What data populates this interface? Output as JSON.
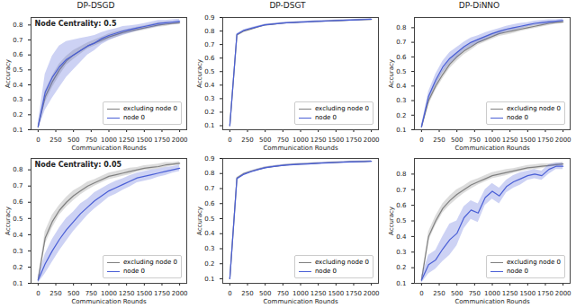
{
  "chart_data": [
    {
      "type": "line",
      "title": "DP-DSGD",
      "annotation": "Node Centrality: 0.5",
      "x_label": "Communication Rounds",
      "y_label": "Accuracy",
      "legend": "lower right",
      "grid": false,
      "x": [
        0,
        100,
        200,
        300,
        400,
        500,
        600,
        700,
        800,
        900,
        1000,
        1100,
        1200,
        1300,
        1400,
        1500,
        1600,
        1700,
        1800,
        1900,
        2000
      ],
      "xlim": [
        -100,
        2100
      ],
      "xticks": [
        0,
        250,
        500,
        750,
        1000,
        1250,
        1500,
        1750,
        2000
      ],
      "ylim": [
        0.1,
        0.85
      ],
      "yticks": [
        0.1,
        0.2,
        0.3,
        0.4,
        0.5,
        0.6,
        0.7,
        0.8
      ],
      "series": [
        {
          "name": "excluding node 0",
          "color": "#808080",
          "values": [
            0.12,
            0.32,
            0.42,
            0.5,
            0.56,
            0.6,
            0.63,
            0.66,
            0.68,
            0.7,
            0.72,
            0.735,
            0.75,
            0.76,
            0.77,
            0.78,
            0.79,
            0.8,
            0.805,
            0.81,
            0.815
          ],
          "errors": [
            0.01,
            0.04,
            0.04,
            0.04,
            0.03,
            0.03,
            0.025,
            0.02,
            0.02,
            0.02,
            0.02,
            0.02,
            0.015,
            0.015,
            0.015,
            0.015,
            0.015,
            0.015,
            0.015,
            0.01,
            0.01
          ]
        },
        {
          "name": "node 0",
          "color": "#4a5fd6",
          "values": [
            0.12,
            0.35,
            0.45,
            0.52,
            0.57,
            0.6,
            0.63,
            0.66,
            0.68,
            0.71,
            0.73,
            0.745,
            0.76,
            0.77,
            0.78,
            0.79,
            0.8,
            0.81,
            0.815,
            0.82,
            0.825
          ],
          "errors": [
            0.02,
            0.12,
            0.14,
            0.14,
            0.12,
            0.1,
            0.08,
            0.06,
            0.05,
            0.04,
            0.035,
            0.03,
            0.03,
            0.025,
            0.02,
            0.02,
            0.02,
            0.02,
            0.015,
            0.015,
            0.015
          ]
        }
      ]
    },
    {
      "type": "line",
      "title": "DP-DSGT",
      "x_label": "Communication Rounds",
      "y_label": "Accuracy",
      "legend": "lower right",
      "grid": false,
      "x": [
        0,
        100,
        200,
        300,
        400,
        500,
        600,
        700,
        800,
        900,
        1000,
        1100,
        1200,
        1300,
        1400,
        1500,
        1600,
        1700,
        1800,
        1900,
        2000
      ],
      "xlim": [
        -100,
        2100
      ],
      "xticks": [
        0,
        250,
        500,
        750,
        1000,
        1250,
        1500,
        1750,
        2000
      ],
      "ylim": [
        0.07,
        0.9
      ],
      "yticks": [
        0.1,
        0.2,
        0.3,
        0.4,
        0.5,
        0.6,
        0.7,
        0.8,
        0.9
      ],
      "series": [
        {
          "name": "excluding node 0",
          "color": "#808080",
          "values": [
            0.1,
            0.77,
            0.8,
            0.815,
            0.83,
            0.845,
            0.85,
            0.855,
            0.86,
            0.862,
            0.865,
            0.867,
            0.87,
            0.872,
            0.874,
            0.876,
            0.878,
            0.88,
            0.882,
            0.884,
            0.886
          ],
          "errors": [
            0.005,
            0.005,
            0.005,
            0.005,
            0.005,
            0.005,
            0.005,
            0.005,
            0.005,
            0.005,
            0.005,
            0.005,
            0.005,
            0.005,
            0.005,
            0.005,
            0.005,
            0.005,
            0.005,
            0.005,
            0.005
          ]
        },
        {
          "name": "node 0",
          "color": "#4a5fd6",
          "values": [
            0.1,
            0.775,
            0.805,
            0.82,
            0.833,
            0.846,
            0.851,
            0.856,
            0.861,
            0.863,
            0.866,
            0.868,
            0.871,
            0.873,
            0.875,
            0.877,
            0.879,
            0.881,
            0.883,
            0.885,
            0.887
          ],
          "errors": [
            0.005,
            0.005,
            0.005,
            0.005,
            0.005,
            0.005,
            0.005,
            0.005,
            0.005,
            0.005,
            0.005,
            0.005,
            0.005,
            0.005,
            0.005,
            0.005,
            0.005,
            0.005,
            0.005,
            0.005,
            0.005
          ]
        }
      ]
    },
    {
      "type": "line",
      "title": "DP-DiNNO",
      "x_label": "Communication Rounds",
      "y_label": "Accuracy",
      "legend": "lower right",
      "grid": false,
      "x": [
        0,
        100,
        200,
        300,
        400,
        500,
        600,
        700,
        800,
        900,
        1000,
        1100,
        1200,
        1300,
        1400,
        1500,
        1600,
        1700,
        1800,
        1900,
        2000
      ],
      "xlim": [
        -100,
        2100
      ],
      "xticks": [
        0,
        250,
        500,
        750,
        1000,
        1250,
        1500,
        1750,
        2000
      ],
      "ylim": [
        0.1,
        0.87
      ],
      "yticks": [
        0.1,
        0.2,
        0.3,
        0.4,
        0.5,
        0.6,
        0.7,
        0.8
      ],
      "series": [
        {
          "name": "excluding node 0",
          "color": "#808080",
          "values": [
            0.12,
            0.3,
            0.4,
            0.48,
            0.55,
            0.6,
            0.64,
            0.67,
            0.7,
            0.72,
            0.74,
            0.76,
            0.77,
            0.78,
            0.79,
            0.8,
            0.81,
            0.82,
            0.83,
            0.835,
            0.84
          ],
          "errors": [
            0.01,
            0.03,
            0.03,
            0.03,
            0.03,
            0.03,
            0.025,
            0.025,
            0.02,
            0.02,
            0.02,
            0.02,
            0.02,
            0.02,
            0.015,
            0.015,
            0.015,
            0.015,
            0.015,
            0.01,
            0.01
          ]
        },
        {
          "name": "node 0",
          "color": "#4a5fd6",
          "values": [
            0.12,
            0.33,
            0.44,
            0.53,
            0.59,
            0.63,
            0.67,
            0.7,
            0.72,
            0.74,
            0.76,
            0.775,
            0.79,
            0.8,
            0.81,
            0.82,
            0.83,
            0.835,
            0.84,
            0.845,
            0.85
          ],
          "errors": [
            0.01,
            0.03,
            0.04,
            0.04,
            0.04,
            0.035,
            0.03,
            0.03,
            0.025,
            0.025,
            0.02,
            0.02,
            0.02,
            0.02,
            0.02,
            0.015,
            0.015,
            0.015,
            0.015,
            0.01,
            0.01
          ]
        }
      ]
    },
    {
      "type": "line",
      "annotation": "Node Centrality: 0.05",
      "x_label": "Communication Rounds",
      "y_label": "Accuracy",
      "legend": "lower right",
      "grid": false,
      "x": [
        0,
        100,
        200,
        300,
        400,
        500,
        600,
        700,
        800,
        900,
        1000,
        1100,
        1200,
        1300,
        1400,
        1500,
        1600,
        1700,
        1800,
        1900,
        2000
      ],
      "xlim": [
        -100,
        2100
      ],
      "xticks": [
        0,
        250,
        500,
        750,
        1000,
        1250,
        1500,
        1750,
        2000
      ],
      "ylim": [
        0.1,
        0.87
      ],
      "yticks": [
        0.1,
        0.2,
        0.3,
        0.4,
        0.5,
        0.6,
        0.7,
        0.8
      ],
      "series": [
        {
          "name": "excluding node 0",
          "color": "#808080",
          "values": [
            0.12,
            0.38,
            0.48,
            0.55,
            0.6,
            0.64,
            0.67,
            0.7,
            0.72,
            0.74,
            0.76,
            0.77,
            0.78,
            0.79,
            0.8,
            0.81,
            0.815,
            0.82,
            0.83,
            0.835,
            0.84
          ],
          "errors": [
            0.01,
            0.04,
            0.04,
            0.03,
            0.03,
            0.03,
            0.025,
            0.025,
            0.02,
            0.02,
            0.02,
            0.02,
            0.02,
            0.02,
            0.015,
            0.015,
            0.015,
            0.015,
            0.015,
            0.01,
            0.01
          ]
        },
        {
          "name": "node 0",
          "color": "#4a5fd6",
          "values": [
            0.12,
            0.22,
            0.3,
            0.37,
            0.43,
            0.48,
            0.53,
            0.57,
            0.61,
            0.64,
            0.67,
            0.69,
            0.71,
            0.73,
            0.75,
            0.76,
            0.77,
            0.78,
            0.79,
            0.8,
            0.81
          ],
          "errors": [
            0.02,
            0.06,
            0.07,
            0.07,
            0.07,
            0.06,
            0.06,
            0.05,
            0.05,
            0.045,
            0.04,
            0.04,
            0.035,
            0.035,
            0.03,
            0.03,
            0.03,
            0.025,
            0.025,
            0.02,
            0.02
          ]
        }
      ]
    },
    {
      "type": "line",
      "x_label": "Communication Rounds",
      "y_label": "Accuracy",
      "legend": "lower right",
      "grid": false,
      "x": [
        0,
        100,
        200,
        300,
        400,
        500,
        600,
        700,
        800,
        900,
        1000,
        1100,
        1200,
        1300,
        1400,
        1500,
        1600,
        1700,
        1800,
        1900,
        2000
      ],
      "xlim": [
        -100,
        2100
      ],
      "xticks": [
        0,
        250,
        500,
        750,
        1000,
        1250,
        1500,
        1750,
        2000
      ],
      "ylim": [
        0.07,
        0.9
      ],
      "yticks": [
        0.1,
        0.2,
        0.3,
        0.4,
        0.5,
        0.6,
        0.7,
        0.8,
        0.9
      ],
      "series": [
        {
          "name": "excluding node 0",
          "color": "#808080",
          "values": [
            0.1,
            0.77,
            0.8,
            0.815,
            0.828,
            0.84,
            0.846,
            0.852,
            0.857,
            0.86,
            0.863,
            0.865,
            0.868,
            0.87,
            0.872,
            0.874,
            0.876,
            0.878,
            0.879,
            0.88,
            0.882
          ],
          "errors": [
            0.005,
            0.005,
            0.005,
            0.005,
            0.005,
            0.005,
            0.005,
            0.005,
            0.005,
            0.005,
            0.005,
            0.005,
            0.005,
            0.005,
            0.005,
            0.005,
            0.005,
            0.005,
            0.005,
            0.005,
            0.005
          ]
        },
        {
          "name": "node 0",
          "color": "#4a5fd6",
          "values": [
            0.1,
            0.765,
            0.795,
            0.812,
            0.826,
            0.838,
            0.845,
            0.851,
            0.856,
            0.859,
            0.862,
            0.864,
            0.867,
            0.869,
            0.871,
            0.873,
            0.875,
            0.877,
            0.878,
            0.879,
            0.881
          ],
          "errors": [
            0.005,
            0.005,
            0.005,
            0.005,
            0.005,
            0.005,
            0.005,
            0.005,
            0.005,
            0.005,
            0.005,
            0.005,
            0.005,
            0.005,
            0.005,
            0.005,
            0.005,
            0.005,
            0.005,
            0.005,
            0.005
          ]
        }
      ]
    },
    {
      "type": "line",
      "x_label": "Communication Rounds",
      "y_label": "Accuracy",
      "legend": "lower right",
      "grid": false,
      "x": [
        0,
        100,
        200,
        300,
        400,
        500,
        600,
        700,
        800,
        900,
        1000,
        1100,
        1200,
        1300,
        1400,
        1500,
        1600,
        1700,
        1800,
        1900,
        2000
      ],
      "xlim": [
        -100,
        2100
      ],
      "xticks": [
        0,
        250,
        500,
        750,
        1000,
        1250,
        1500,
        1750,
        2000
      ],
      "ylim": [
        0.1,
        0.9
      ],
      "yticks": [
        0.1,
        0.2,
        0.3,
        0.4,
        0.5,
        0.6,
        0.7,
        0.8
      ],
      "series": [
        {
          "name": "excluding node 0",
          "color": "#808080",
          "values": [
            0.12,
            0.4,
            0.5,
            0.58,
            0.63,
            0.67,
            0.7,
            0.73,
            0.75,
            0.77,
            0.79,
            0.8,
            0.81,
            0.82,
            0.83,
            0.84,
            0.845,
            0.85,
            0.855,
            0.86,
            0.865
          ],
          "errors": [
            0.01,
            0.03,
            0.03,
            0.03,
            0.03,
            0.03,
            0.025,
            0.025,
            0.02,
            0.02,
            0.02,
            0.02,
            0.02,
            0.015,
            0.015,
            0.015,
            0.015,
            0.015,
            0.01,
            0.01,
            0.01
          ]
        },
        {
          "name": "node 0",
          "color": "#4a5fd6",
          "values": [
            0.12,
            0.22,
            0.25,
            0.32,
            0.38,
            0.42,
            0.52,
            0.57,
            0.55,
            0.65,
            0.69,
            0.66,
            0.72,
            0.75,
            0.77,
            0.79,
            0.8,
            0.79,
            0.83,
            0.85,
            0.85
          ],
          "errors": [
            0.02,
            0.06,
            0.06,
            0.08,
            0.1,
            0.08,
            0.07,
            0.06,
            0.06,
            0.05,
            0.05,
            0.05,
            0.04,
            0.04,
            0.04,
            0.03,
            0.03,
            0.03,
            0.03,
            0.02,
            0.02
          ]
        }
      ]
    }
  ]
}
